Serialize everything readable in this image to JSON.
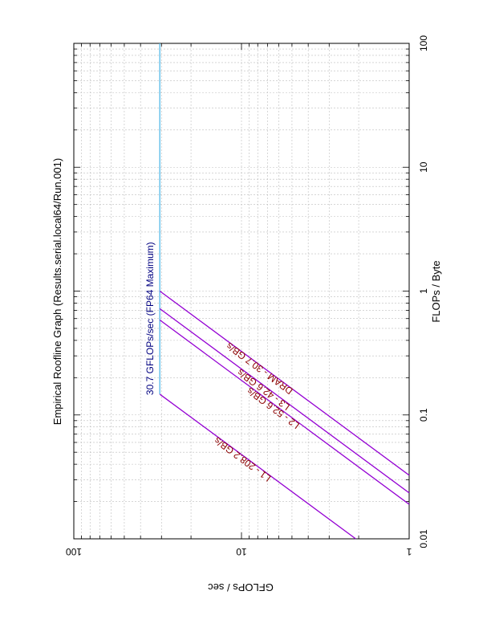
{
  "chart_data": {
    "type": "line",
    "title": "Empirical Roofline Graph (Results.serial.local64/Run.001)",
    "xlabel": "FLOPs / Byte",
    "ylabel": "GFLOPs / sec",
    "xscale": "log",
    "yscale": "log",
    "xlim": [
      0.01,
      100
    ],
    "ylim": [
      1,
      100
    ],
    "grid": true,
    "orientation": "rotated 90 degrees counter-clockwise (page landscape)",
    "x_ticks": [
      "0.01",
      "0.1",
      "1",
      "10",
      "100"
    ],
    "y_ticks": [
      "1",
      "10",
      "100"
    ],
    "series": [
      {
        "name": "30.7 GFLOPs/sec (FP64 Maximum)",
        "color": "#4fb8e8",
        "x": [
          0.147,
          100
        ],
        "y": [
          30.7,
          30.7
        ]
      },
      {
        "name": "L1 - 208.2 GB/s",
        "color": "#9400d3",
        "x": [
          0.01,
          0.147
        ],
        "y": [
          2.082,
          30.7
        ]
      },
      {
        "name": "L2 - 52.6 GB/s",
        "color": "#9400d3",
        "x": [
          0.019,
          0.584
        ],
        "y": [
          1.0,
          30.7
        ]
      },
      {
        "name": "L3 - 42.6 GB/s",
        "color": "#9400d3",
        "x": [
          0.0235,
          0.721
        ],
        "y": [
          1.0,
          30.7
        ]
      },
      {
        "name": "DRAM - 30.7 GB/s",
        "color": "#9400d3",
        "x": [
          0.0326,
          1.0
        ],
        "y": [
          1.0,
          30.7
        ]
      }
    ],
    "annotations": [
      {
        "text": "30.7 GFLOPs/sec (FP64 Maximum)",
        "color": "#000080",
        "x": 0.6,
        "y": 30.7
      },
      {
        "text": "L1 - 208.2 GB/s",
        "color": "#8b0000",
        "x": 0.046,
        "y": 9.6
      },
      {
        "text": "L2 - 52.6 GB/s",
        "color": "#8b0000",
        "x": 0.119,
        "y": 6.3
      },
      {
        "text": "L3 - 42.6 GB/s",
        "color": "#8b0000",
        "x": 0.168,
        "y": 7.2
      },
      {
        "text": "DRAM - 30.7 GB/s",
        "color": "#8b0000",
        "x": 0.249,
        "y": 7.6
      }
    ]
  }
}
